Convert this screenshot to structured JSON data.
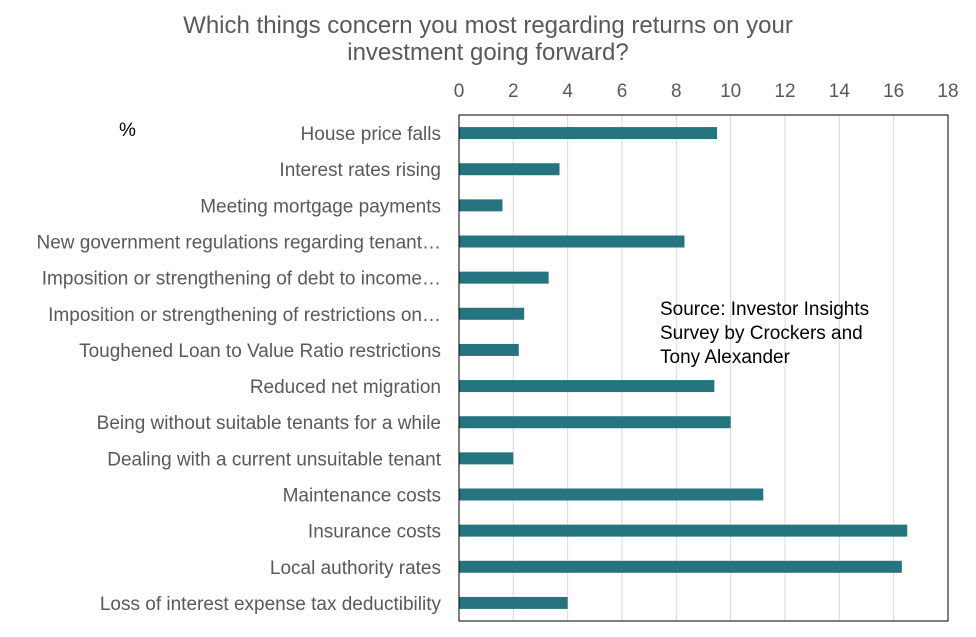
{
  "chart_data": {
    "type": "bar",
    "orientation": "horizontal",
    "title_lines": [
      "Which things concern you most regarding returns on your",
      "investment going forward?"
    ],
    "unit_label": "%",
    "source_lines": [
      "Source: Investor Insights",
      "Survey by Crockers and",
      "Tony Alexander"
    ],
    "categories": [
      "House price falls",
      "Interest rates rising",
      "Meeting mortgage payments",
      "New government regulations regarding tenant…",
      "Imposition or strengthening of debt to income…",
      "Imposition or strengthening of restrictions on…",
      "Toughened Loan to Value Ratio restrictions",
      "Reduced net migration",
      "Being without suitable tenants for a while",
      "Dealing with a current unsuitable tenant",
      "Maintenance costs",
      "Insurance costs",
      "Local authority rates",
      "Loss of interest expense tax deductibility"
    ],
    "values": [
      9.5,
      3.7,
      1.6,
      8.3,
      3.3,
      2.4,
      2.2,
      9.4,
      10.0,
      2.0,
      11.2,
      16.5,
      16.3,
      4.0
    ],
    "xlim": [
      0,
      18
    ],
    "xticks": [
      0,
      2,
      4,
      6,
      8,
      10,
      12,
      14,
      16,
      18
    ],
    "axis_position": "top",
    "grid": true,
    "bar_color": "#26747f",
    "grid_color": "#d9d9d9",
    "frame_color": "#000000"
  }
}
